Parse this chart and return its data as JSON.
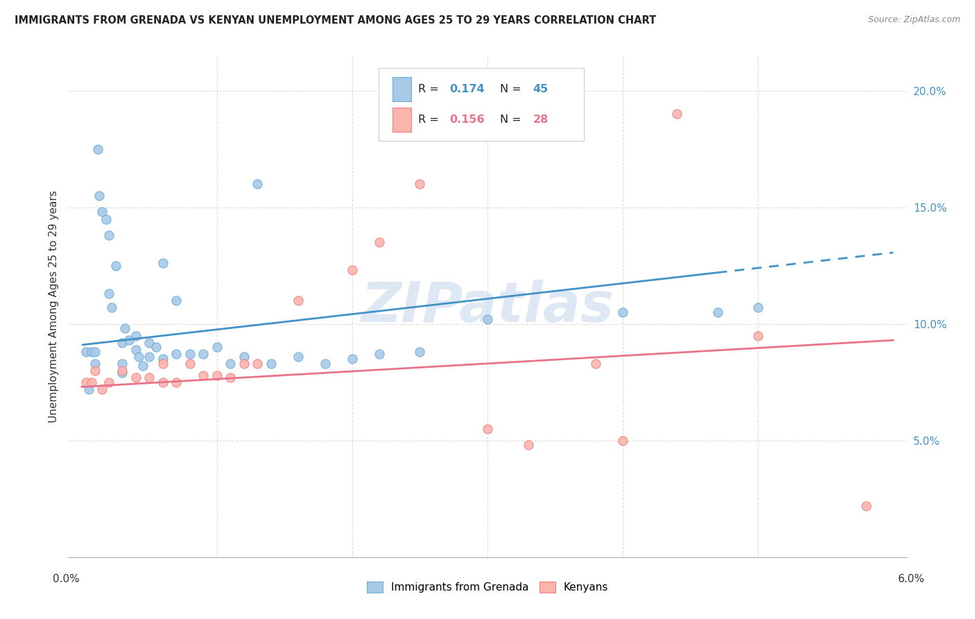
{
  "title": "IMMIGRANTS FROM GRENADA VS KENYAN UNEMPLOYMENT AMONG AGES 25 TO 29 YEARS CORRELATION CHART",
  "source": "Source: ZipAtlas.com",
  "ylabel": "Unemployment Among Ages 25 to 29 years",
  "xlim": [
    0.0,
    0.06
  ],
  "ylim": [
    0.0,
    0.215
  ],
  "yticks": [
    0.05,
    0.1,
    0.15,
    0.2
  ],
  "ytick_labels": [
    "5.0%",
    "10.0%",
    "15.0%",
    "20.0%"
  ],
  "watermark": "ZIPatlas",
  "blue_face": "#a8c8e8",
  "blue_edge": "#6baed6",
  "pink_face": "#fbb4ae",
  "pink_edge": "#f08080",
  "line_blue": "#4292c6",
  "line_pink": "#e9748a",
  "grid_color": "#dddddd",
  "grenada_x": [
    0.0003,
    0.0005,
    0.0007,
    0.001,
    0.001,
    0.0012,
    0.0013,
    0.0015,
    0.0018,
    0.002,
    0.002,
    0.0022,
    0.0025,
    0.003,
    0.003,
    0.003,
    0.0032,
    0.0035,
    0.004,
    0.004,
    0.0042,
    0.0045,
    0.005,
    0.005,
    0.0055,
    0.006,
    0.006,
    0.007,
    0.007,
    0.008,
    0.009,
    0.01,
    0.011,
    0.012,
    0.013,
    0.014,
    0.016,
    0.018,
    0.02,
    0.022,
    0.025,
    0.03,
    0.04,
    0.047,
    0.05
  ],
  "grenada_y": [
    0.088,
    0.072,
    0.088,
    0.088,
    0.083,
    0.175,
    0.155,
    0.148,
    0.145,
    0.138,
    0.113,
    0.107,
    0.125,
    0.092,
    0.083,
    0.079,
    0.098,
    0.093,
    0.095,
    0.089,
    0.086,
    0.082,
    0.092,
    0.086,
    0.09,
    0.085,
    0.126,
    0.11,
    0.087,
    0.087,
    0.087,
    0.09,
    0.083,
    0.086,
    0.16,
    0.083,
    0.086,
    0.083,
    0.085,
    0.087,
    0.088,
    0.102,
    0.105,
    0.105,
    0.107
  ],
  "kenya_x": [
    0.0003,
    0.0007,
    0.001,
    0.0015,
    0.002,
    0.003,
    0.004,
    0.005,
    0.006,
    0.006,
    0.007,
    0.008,
    0.009,
    0.01,
    0.011,
    0.012,
    0.013,
    0.016,
    0.02,
    0.022,
    0.025,
    0.03,
    0.033,
    0.038,
    0.04,
    0.044,
    0.05,
    0.058
  ],
  "kenya_y": [
    0.075,
    0.075,
    0.08,
    0.072,
    0.075,
    0.08,
    0.077,
    0.077,
    0.075,
    0.083,
    0.075,
    0.083,
    0.078,
    0.078,
    0.077,
    0.083,
    0.083,
    0.11,
    0.123,
    0.135,
    0.16,
    0.055,
    0.048,
    0.083,
    0.05,
    0.19,
    0.095,
    0.022
  ],
  "blue_line_x0": 0.0,
  "blue_line_x1": 0.047,
  "blue_line_x2": 0.06,
  "blue_line_y0": 0.091,
  "blue_line_y1": 0.122,
  "pink_line_x0": 0.0,
  "pink_line_x1": 0.06,
  "pink_line_y0": 0.073,
  "pink_line_y1": 0.093
}
